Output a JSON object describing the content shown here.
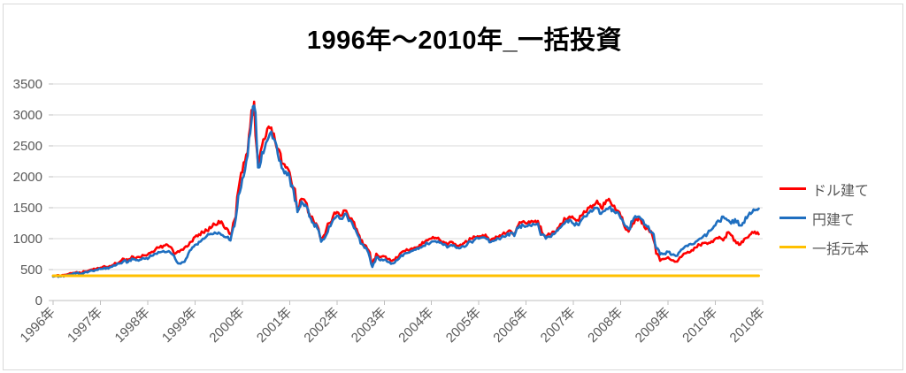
{
  "chart_data": {
    "type": "line",
    "title": "1996年〜2010年_一括投資",
    "xlabel": "",
    "ylabel": "",
    "ylim": [
      0,
      3500
    ],
    "y_ticks": [
      0,
      500,
      1000,
      1500,
      2000,
      2500,
      3000,
      3500
    ],
    "x_tick_labels": [
      "1996年",
      "1997年",
      "1998年",
      "1999年",
      "2000年",
      "2001年",
      "2002年",
      "2003年",
      "2004年",
      "2005年",
      "2006年",
      "2007年",
      "2008年",
      "2009年",
      "2010年",
      "2010年"
    ],
    "x_resolution": "monthly, Jan 1996 - Dec 2010",
    "grid": true,
    "legend_position": "right",
    "series": [
      {
        "name": "ドル建て",
        "color": "#FF0000",
        "values": [
          400,
          408,
          398,
          415,
          430,
          445,
          460,
          443,
          470,
          483,
          500,
          515,
          530,
          557,
          540,
          571,
          600,
          629,
          671,
          650,
          714,
          686,
          700,
          729,
          743,
          786,
          829,
          857,
          886,
          900,
          857,
          757,
          786,
          820,
          871,
          950,
          1029,
          1071,
          1100,
          1129,
          1171,
          1229,
          1286,
          1243,
          1171,
          1071,
          1300,
          1786,
          2071,
          2357,
          2800,
          3214,
          2214,
          2500,
          2657,
          2786,
          2700,
          2457,
          2214,
          2150,
          2071,
          1829,
          1471,
          1643,
          1600,
          1400,
          1300,
          1214,
          1000,
          1071,
          1250,
          1357,
          1429,
          1371,
          1457,
          1343,
          1286,
          1157,
          971,
          900,
          814,
          600,
          757,
          700,
          714,
          671,
          643,
          700,
          757,
          800,
          814,
          843,
          857,
          900,
          929,
          971,
          1000,
          1014,
          986,
          950,
          900,
          950,
          914,
          886,
          921,
          950,
          1000,
          1029,
          1029,
          1057,
          1029,
          971,
          1000,
          1029,
          1071,
          1086,
          1129,
          1071,
          1214,
          1271,
          1243,
          1257,
          1271,
          1286,
          1100,
          1043,
          1071,
          1114,
          1171,
          1243,
          1314,
          1357,
          1329,
          1300,
          1371,
          1429,
          1500,
          1543,
          1614,
          1500,
          1557,
          1643,
          1529,
          1457,
          1357,
          1186,
          1114,
          1243,
          1314,
          1329,
          1186,
          1157,
          1057,
          757,
          643,
          671,
          700,
          650,
          629,
          700,
          757,
          786,
          814,
          857,
          900,
          929,
          914,
          957,
          1000,
          1029,
          971,
          1100,
          1057,
          971,
          900,
          943,
          1014,
          1071,
          1114,
          1071
        ]
      },
      {
        "name": "円建て",
        "color": "#1F6FC0",
        "values": [
          386,
          395,
          388,
          403,
          418,
          432,
          446,
          428,
          455,
          466,
          480,
          494,
          510,
          531,
          516,
          546,
          571,
          600,
          643,
          621,
          679,
          651,
          657,
          680,
          671,
          721,
          757,
          779,
          800,
          789,
          757,
          671,
          600,
          621,
          700,
          820,
          900,
          950,
          1000,
          1043,
          1079,
          1100,
          1100,
          1057,
          1021,
          971,
          1200,
          1700,
          1971,
          2250,
          2700,
          3150,
          2150,
          2400,
          2550,
          2700,
          2614,
          2364,
          2143,
          2086,
          2000,
          1779,
          1429,
          1600,
          1550,
          1357,
          1257,
          1171,
          950,
          1021,
          1200,
          1300,
          1371,
          1321,
          1400,
          1286,
          1229,
          1100,
          921,
          850,
          771,
          543,
          700,
          650,
          657,
          621,
          600,
          650,
          700,
          750,
          771,
          800,
          821,
          857,
          886,
          921,
          950,
          960,
          936,
          900,
          857,
          900,
          871,
          843,
          879,
          900,
          950,
          986,
          1000,
          1021,
          993,
          943,
          971,
          1000,
          1043,
          1050,
          1093,
          1043,
          1171,
          1229,
          1200,
          1214,
          1229,
          1243,
          1064,
          1000,
          1029,
          1071,
          1129,
          1200,
          1271,
          1307,
          1243,
          1229,
          1300,
          1357,
          1421,
          1457,
          1500,
          1400,
          1450,
          1500,
          1471,
          1429,
          1329,
          1214,
          1157,
          1279,
          1343,
          1329,
          1229,
          1200,
          1100,
          843,
          743,
          757,
          786,
          740,
          720,
          790,
          850,
          879,
          907,
          950,
          1000,
          1043,
          1079,
          1143,
          1214,
          1279,
          1357,
          1300,
          1243,
          1314,
          1214,
          1257,
          1329,
          1400,
          1457,
          1486
        ]
      },
      {
        "name": "一括元本",
        "color": "#FFC000",
        "constant": 400
      }
    ]
  }
}
